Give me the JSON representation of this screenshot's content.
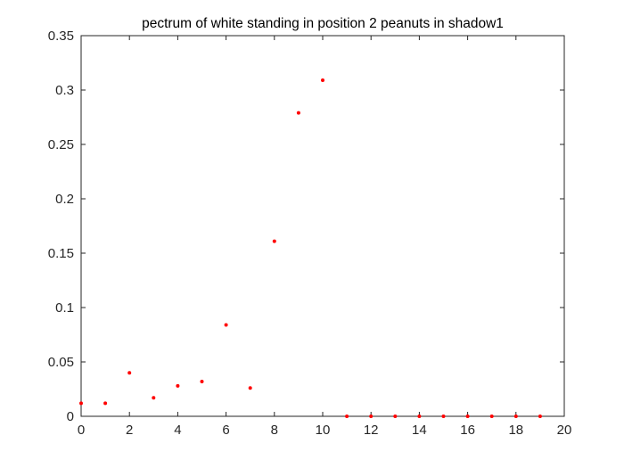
{
  "chart_data": {
    "type": "scatter",
    "title": "pectrum of white standing in position 2 peanuts in shadow1",
    "xlabel": "",
    "ylabel": "",
    "xlim": [
      0,
      20
    ],
    "ylim": [
      0,
      0.35
    ],
    "x_ticks": [
      0,
      2,
      4,
      6,
      8,
      10,
      12,
      14,
      16,
      18,
      20
    ],
    "x_tick_labels": [
      "0",
      "2",
      "4",
      "6",
      "8",
      "10",
      "12",
      "14",
      "16",
      "18",
      "20"
    ],
    "y_ticks": [
      0,
      0.05,
      0.1,
      0.15,
      0.2,
      0.25,
      0.3,
      0.35
    ],
    "y_tick_labels": [
      "0",
      "0.05",
      "0.1",
      "0.15",
      "0.2",
      "0.25",
      "0.3",
      "0.35"
    ],
    "grid": false,
    "legend": "none",
    "marker_color": "#ff0000",
    "axis_color": "#262626",
    "series": [
      {
        "x": [
          0,
          1,
          2,
          3,
          4,
          5,
          6,
          7,
          8,
          9,
          10,
          11,
          12,
          13,
          14,
          15,
          16,
          17,
          18,
          19
        ],
        "y": [
          0.012,
          0.012,
          0.04,
          0.017,
          0.028,
          0.032,
          0.084,
          0.026,
          0.161,
          0.279,
          0.309,
          0,
          0,
          0,
          0,
          0,
          0,
          0,
          0,
          0
        ]
      }
    ]
  }
}
